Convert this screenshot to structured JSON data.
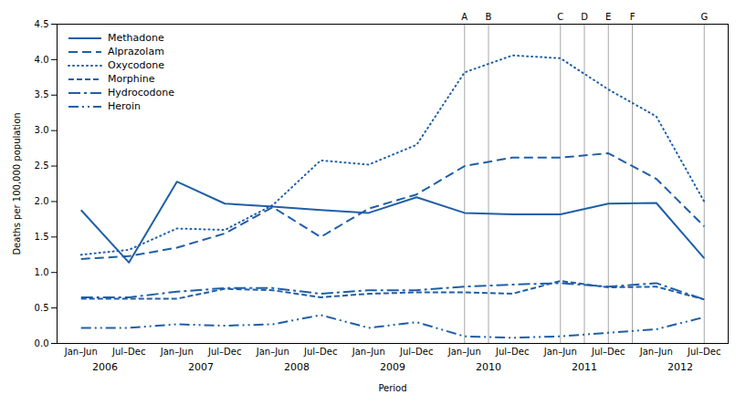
{
  "chart_data": {
    "type": "line",
    "xlabel": "Period",
    "ylabel": "Deaths per 100,000 population",
    "categories": [
      "Jan–Jun",
      "Jul–Dec",
      "Jan–Jun",
      "Jul–Dec",
      "Jan–Jun",
      "Jul–Dec",
      "Jan–Jun",
      "Jul–Dec",
      "Jan–Jun",
      "Jul–Dec",
      "Jan–Jun",
      "Jul–Dec",
      "Jan–Jun",
      "Jul–Dec"
    ],
    "ylim": [
      0,
      4.5
    ],
    "yticks": [
      {
        "value": 0,
        "label": "0.0"
      },
      0.5,
      {
        "value": 1,
        "label": "1.0"
      },
      1.5,
      {
        "value": 2,
        "label": "2.0"
      },
      2.5,
      {
        "value": 3,
        "label": "3.0"
      },
      3.5,
      {
        "value": 4,
        "label": "4.0"
      },
      4.5
    ],
    "grid": false,
    "legend": "upper left",
    "series": [
      {
        "name": "Methadone",
        "color": "#1f5fa6",
        "line_style": "solid",
        "values": [
          1.88,
          1.14,
          2.28,
          1.97,
          1.93,
          1.88,
          1.84,
          2.06,
          1.84,
          1.82,
          1.82,
          1.97,
          1.98,
          1.2
        ]
      },
      {
        "name": "Alprazolam",
        "color": "#1f5fa6",
        "line_style": "dashed",
        "values": [
          1.19,
          1.23,
          1.35,
          1.55,
          1.92,
          1.5,
          1.9,
          2.1,
          2.5,
          2.62,
          2.62,
          2.68,
          2.32,
          1.65
        ]
      },
      {
        "name": "Oxycodone",
        "color": "#1f5fa6",
        "line_style": "dotted",
        "values": [
          1.25,
          1.32,
          1.62,
          1.6,
          1.95,
          2.58,
          2.52,
          2.8,
          3.82,
          4.06,
          4.02,
          3.58,
          3.2,
          2.0
        ]
      },
      {
        "name": "Morphine",
        "color": "#1f5fa6",
        "line_style": "short-dashed",
        "values": [
          0.63,
          0.63,
          0.63,
          0.77,
          0.75,
          0.65,
          0.7,
          0.72,
          0.72,
          0.7,
          0.88,
          0.79,
          0.8,
          0.62
        ]
      },
      {
        "name": "Hydrocodone",
        "color": "#1f5fa6",
        "line_style": "dash-dot",
        "values": [
          0.65,
          0.65,
          0.73,
          0.78,
          0.78,
          0.7,
          0.75,
          0.75,
          0.8,
          0.83,
          0.85,
          0.8,
          0.85,
          0.62
        ]
      },
      {
        "name": "Heroin",
        "color": "#1f5fa6",
        "line_style": "dash-dot-dot",
        "values": [
          0.22,
          0.22,
          0.27,
          0.25,
          0.27,
          0.4,
          0.22,
          0.3,
          0.1,
          0.08,
          0.1,
          0.15,
          0.2,
          0.37
        ]
      }
    ],
    "annotations": [
      {
        "type": "vline",
        "x": 8.0,
        "text": "A"
      },
      {
        "type": "vline",
        "x": 8.5,
        "text": "B"
      },
      {
        "type": "vline",
        "x": 10.0,
        "text": "C"
      },
      {
        "type": "vline",
        "x": 10.5,
        "text": "D"
      },
      {
        "type": "vline",
        "x": 11.0,
        "text": "E"
      },
      {
        "type": "vline",
        "x": 11.5,
        "text": "F"
      },
      {
        "type": "vline",
        "x": 13.0,
        "text": "G"
      },
      {
        "type": "group",
        "x": 0.5,
        "text": "2006"
      },
      {
        "type": "group",
        "x": 2.5,
        "text": "2007"
      },
      {
        "type": "group",
        "x": 4.5,
        "text": "2008"
      },
      {
        "type": "group",
        "x": 6.5,
        "text": "2009"
      },
      {
        "type": "group",
        "x": 8.5,
        "text": "2010"
      },
      {
        "type": "group",
        "x": 10.5,
        "text": "2011"
      },
      {
        "type": "group",
        "x": 12.5,
        "text": "2012"
      }
    ]
  }
}
